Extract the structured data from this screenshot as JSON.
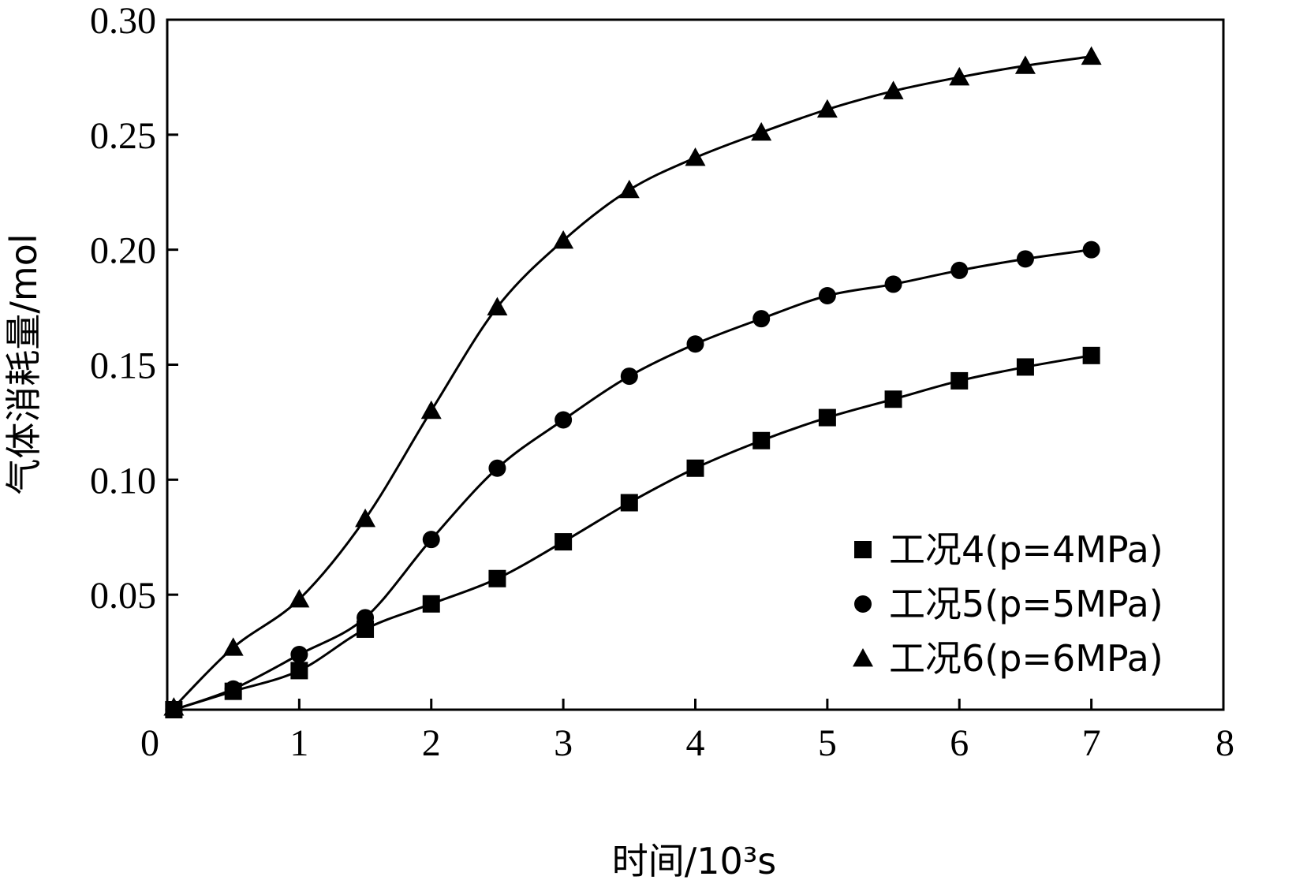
{
  "chart_data": {
    "type": "line",
    "xlabel": "时间/10³s",
    "ylabel": "气体消耗量/mol",
    "xlim": [
      0,
      8
    ],
    "ylim": [
      0,
      0.3
    ],
    "x_ticks": [
      "0",
      "1",
      "2",
      "3",
      "4",
      "5",
      "6",
      "7",
      "8"
    ],
    "y_ticks": [
      "0.05",
      "0.10",
      "0.15",
      "0.20",
      "0.25",
      "0.30"
    ],
    "grid": false,
    "legend_position": "bottom-right",
    "x": [
      0.05,
      0.5,
      1.0,
      1.5,
      2.0,
      2.5,
      3.0,
      3.5,
      4.0,
      4.5,
      5.0,
      5.5,
      6.0,
      6.5,
      7.0
    ],
    "series": [
      {
        "name": "工况4(p=4MPa)",
        "marker": "square",
        "values": [
          0.0,
          0.008,
          0.017,
          0.035,
          0.046,
          0.057,
          0.073,
          0.09,
          0.105,
          0.117,
          0.127,
          0.135,
          0.143,
          0.149,
          0.154
        ]
      },
      {
        "name": "工况5(p=5MPa)",
        "marker": "circle",
        "values": [
          0.0,
          0.009,
          0.024,
          0.04,
          0.074,
          0.105,
          0.126,
          0.145,
          0.159,
          0.17,
          0.18,
          0.185,
          0.191,
          0.196,
          0.2
        ]
      },
      {
        "name": "工况6(p=6MPa)",
        "marker": "triangle",
        "values": [
          0.001,
          0.027,
          0.048,
          0.083,
          0.13,
          0.175,
          0.204,
          0.226,
          0.24,
          0.251,
          0.261,
          0.269,
          0.275,
          0.28,
          0.284
        ]
      }
    ]
  }
}
